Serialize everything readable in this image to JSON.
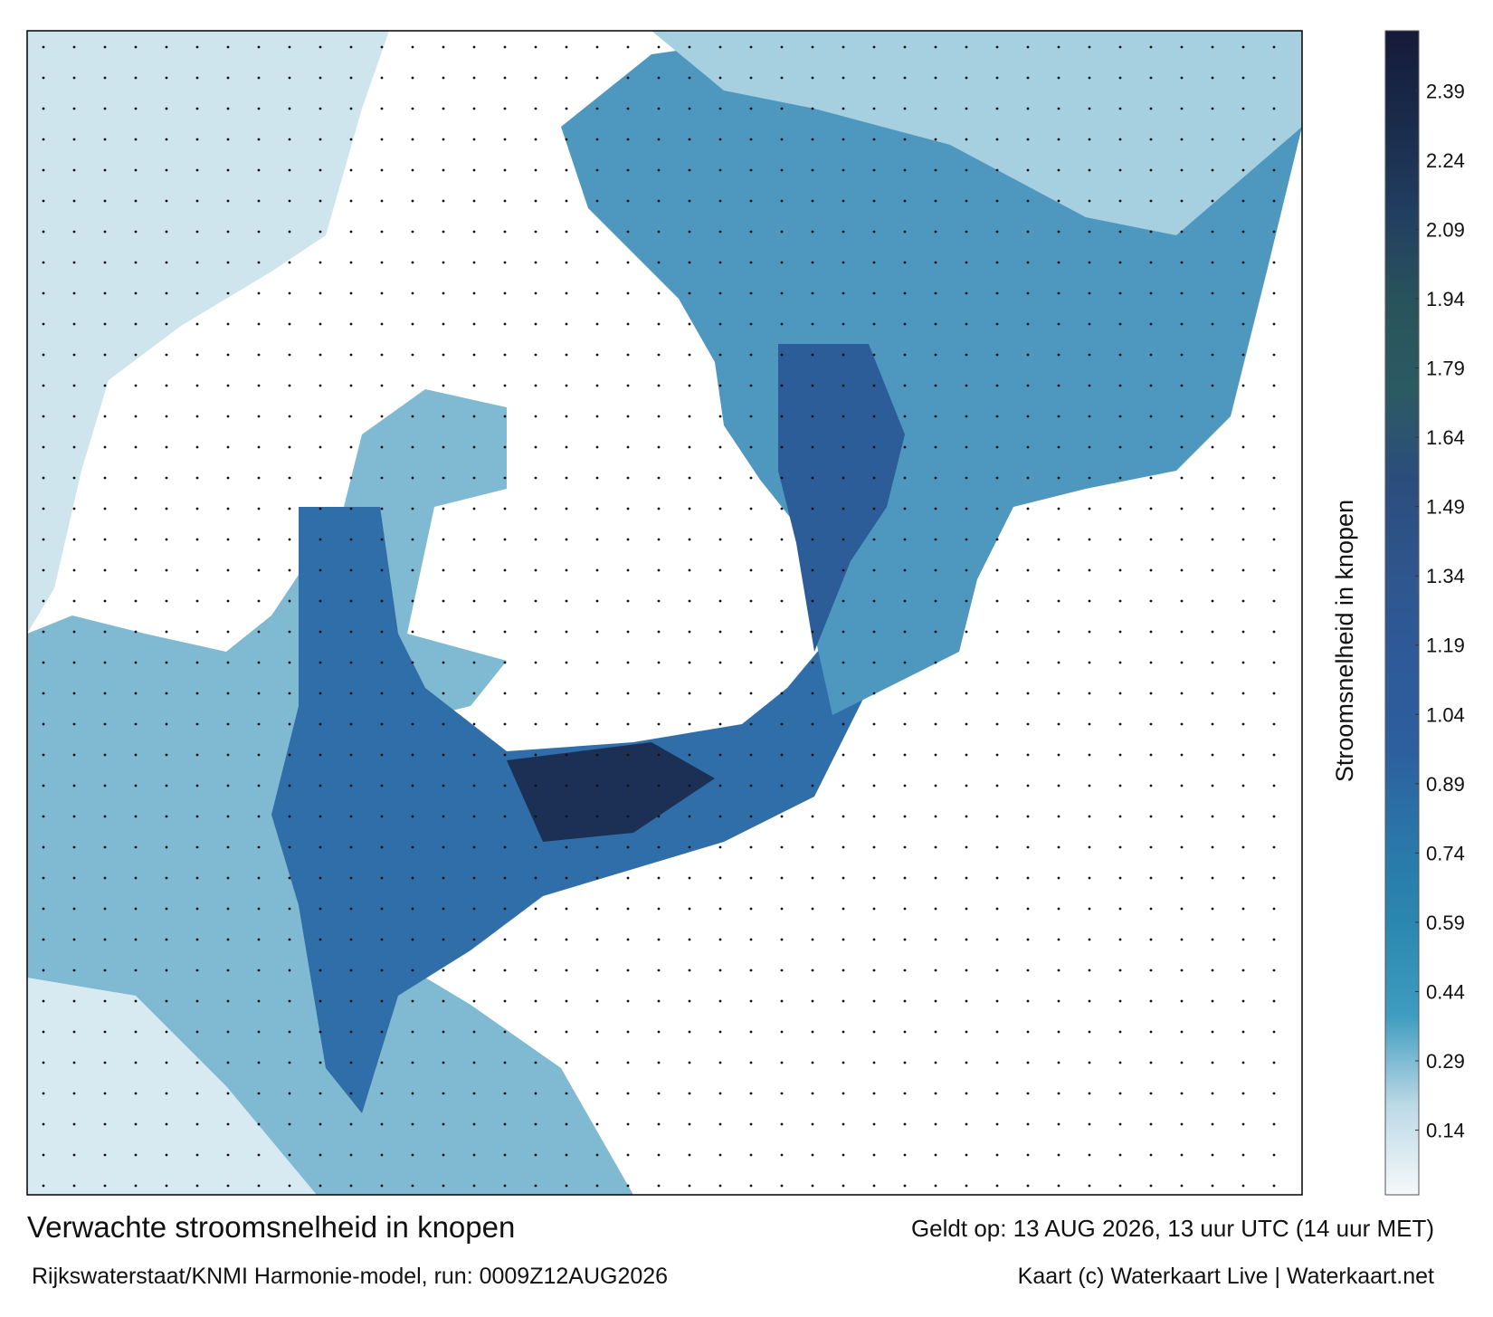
{
  "map": {
    "colorbar_label": "Stroomsnelheid in knopen",
    "colorbar": {
      "lim": [
        0,
        2.52
      ],
      "ticks": [
        0.14,
        0.29,
        0.44,
        0.59,
        0.74,
        0.89,
        1.04,
        1.19,
        1.34,
        1.49,
        1.64,
        1.79,
        1.94,
        2.09,
        2.24,
        2.39
      ],
      "colors": [
        "#f4f8fa",
        "#bcd9e6",
        "#3f9cc0",
        "#2b88b0",
        "#2a76a8",
        "#2d5e9e",
        "#2e5a98",
        "#2f558c",
        "#2b4d7c",
        "#2c5a62",
        "#29535c",
        "#223d60",
        "#1a2b4a",
        "#151a38"
      ]
    }
  },
  "footer": {
    "title": "Verwachte stroomsnelheid in knopen",
    "valid": "Geldt op: 13 AUG 2026, 13 uur UTC (14 uur MET)",
    "model": "Rijkswaterstaat/KNMI Harmonie-model, run: 0009Z12AUG2026",
    "credit": "Kaart (c) Waterkaart Live | Waterkaart.net"
  }
}
